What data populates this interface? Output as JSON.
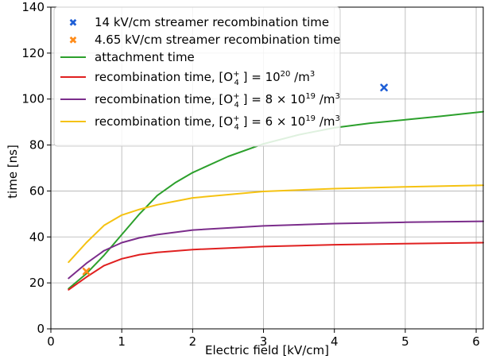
{
  "chart_data": {
    "type": "line",
    "xlabel": "Electric field [kV/cm]",
    "ylabel": "time [ns]",
    "xlim": [
      0,
      6.1
    ],
    "ylim": [
      0,
      140
    ],
    "xticks": [
      "0",
      "1",
      "2",
      "3",
      "4",
      "5",
      "6"
    ],
    "yticks": [
      "0",
      "20",
      "40",
      "60",
      "80",
      "100",
      "120",
      "140"
    ],
    "grid": true,
    "legend_position": "top-left",
    "series": [
      {
        "name": "14 kV/cm streamer recombination time",
        "kind": "scatter",
        "marker": "x",
        "color": "#1f5fd6",
        "points": [
          [
            4.7,
            105
          ]
        ]
      },
      {
        "name": "4.65 kV/cm streamer recombination time",
        "kind": "scatter",
        "marker": "x",
        "color": "#ff8c1a",
        "points": [
          [
            0.5,
            25
          ]
        ]
      },
      {
        "name": "attachment time",
        "kind": "line",
        "color": "#2ca02c",
        "points": [
          [
            0.25,
            17.5
          ],
          [
            0.5,
            24
          ],
          [
            0.75,
            32
          ],
          [
            1.0,
            41
          ],
          [
            1.25,
            50
          ],
          [
            1.5,
            58
          ],
          [
            1.75,
            63.5
          ],
          [
            2.0,
            68
          ],
          [
            2.5,
            75
          ],
          [
            3.0,
            80.5
          ],
          [
            3.5,
            84.5
          ],
          [
            4.0,
            87.5
          ],
          [
            4.5,
            89.5
          ],
          [
            5.0,
            91
          ],
          [
            5.5,
            92.5
          ],
          [
            6.1,
            94.5
          ]
        ]
      },
      {
        "name": "recombination time, [O4+] = 10^20 /m^3",
        "kind": "line",
        "color": "#e02020",
        "points": [
          [
            0.25,
            17
          ],
          [
            0.5,
            22.5
          ],
          [
            0.75,
            27.5
          ],
          [
            1.0,
            30.5
          ],
          [
            1.25,
            32.3
          ],
          [
            1.5,
            33.3
          ],
          [
            2.0,
            34.5
          ],
          [
            3.0,
            35.8
          ],
          [
            4.0,
            36.6
          ],
          [
            5.0,
            37.1
          ],
          [
            6.1,
            37.5
          ]
        ]
      },
      {
        "name": "recombination time, [O4+] = 8 × 10^19 /m^3",
        "kind": "line",
        "color": "#7b2d8b",
        "points": [
          [
            0.25,
            22
          ],
          [
            0.5,
            28.5
          ],
          [
            0.75,
            34
          ],
          [
            1.0,
            37.5
          ],
          [
            1.25,
            39.6
          ],
          [
            1.5,
            41
          ],
          [
            2.0,
            43
          ],
          [
            3.0,
            44.8
          ],
          [
            4.0,
            45.8
          ],
          [
            5.0,
            46.4
          ],
          [
            6.1,
            46.8
          ]
        ]
      },
      {
        "name": "recombination time, [O4+] = 6 × 10^19 /m^3",
        "kind": "line",
        "color": "#f5c211",
        "points": [
          [
            0.25,
            29
          ],
          [
            0.5,
            37.5
          ],
          [
            0.75,
            45
          ],
          [
            1.0,
            49.5
          ],
          [
            1.25,
            52
          ],
          [
            1.5,
            54
          ],
          [
            2.0,
            57
          ],
          [
            3.0,
            59.8
          ],
          [
            4.0,
            61
          ],
          [
            5.0,
            61.8
          ],
          [
            6.1,
            62.5
          ]
        ]
      }
    ]
  }
}
